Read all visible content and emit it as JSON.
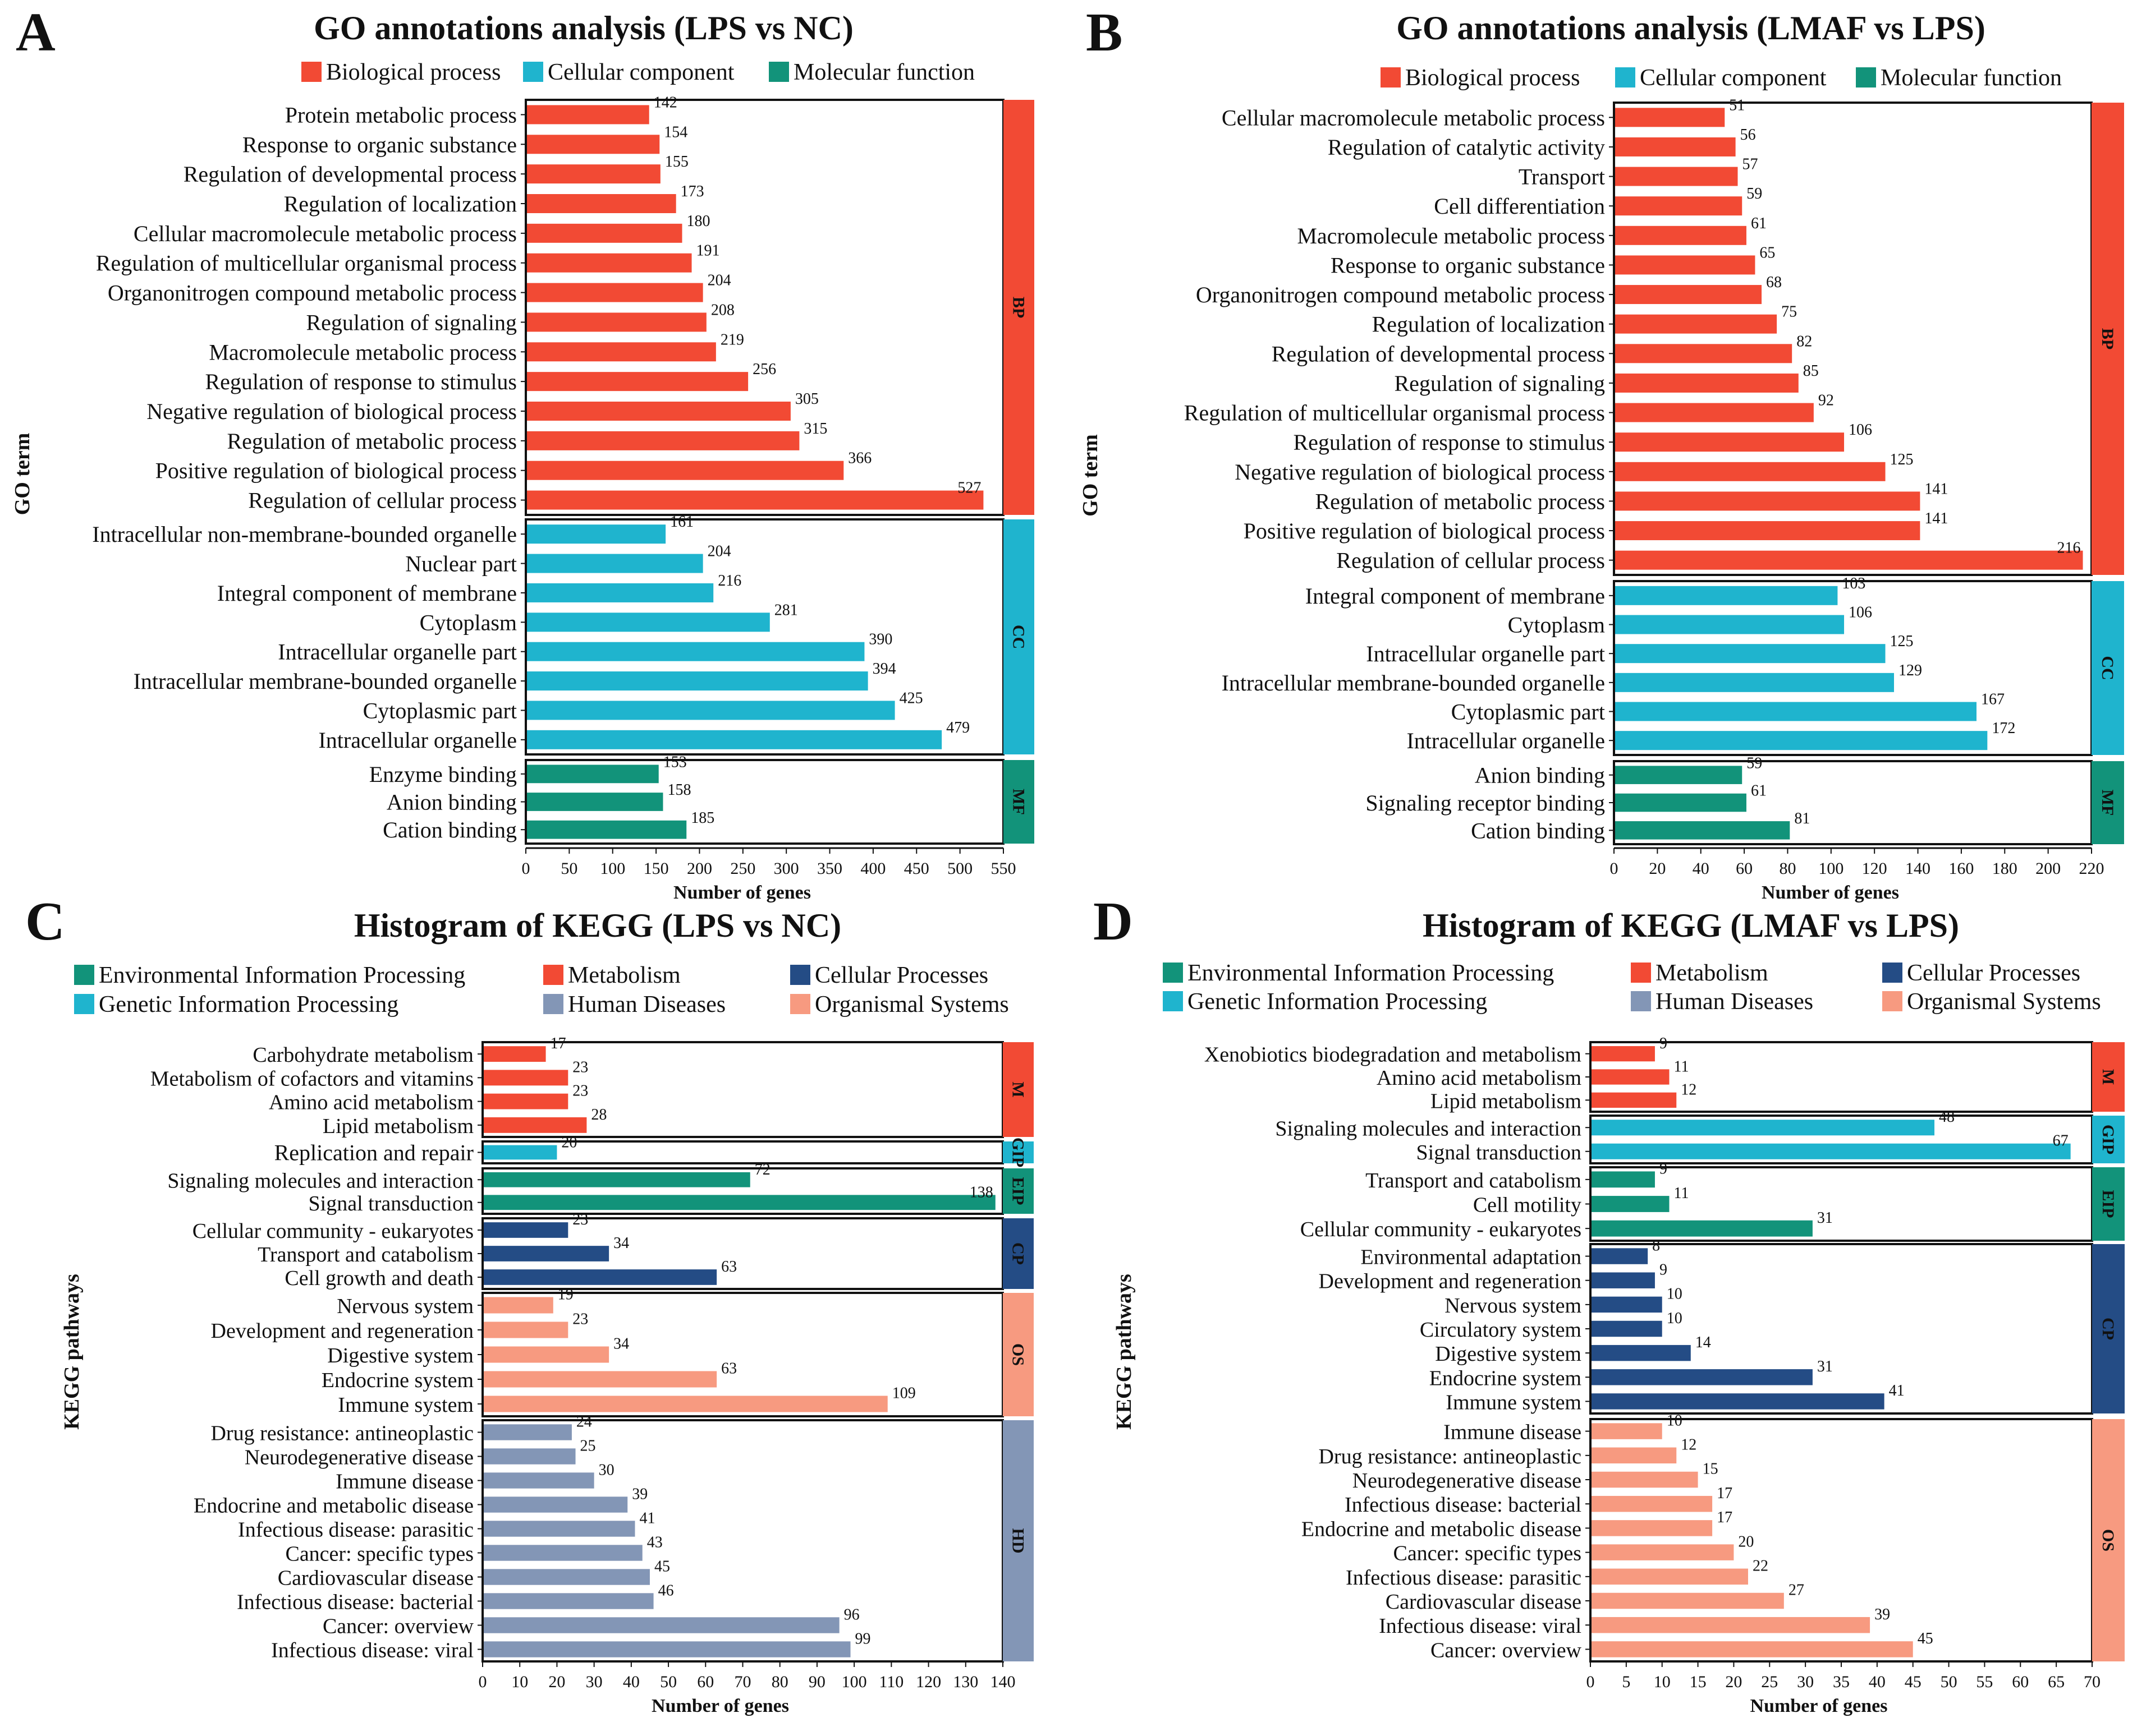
{
  "palette": {
    "BP": "#F24A34",
    "CC": "#1FB4CE",
    "MF": "#12937A",
    "M": "#F24A34",
    "GIP": "#1FB4CE",
    "EIP": "#12937A",
    "CP": "#244C85",
    "HD": "#8396B6",
    "OS": "#F79A80"
  },
  "chart_data": [
    {
      "type": "bar",
      "panel_letter": "A",
      "title": "GO annotations analysis (LPS vs NC)",
      "ylabel": "GO term",
      "xlabel": "Number of genes",
      "xlim": [
        0,
        550
      ],
      "xticks": [
        0,
        50,
        100,
        150,
        200,
        250,
        300,
        350,
        400,
        450,
        500,
        550
      ],
      "legend": [
        {
          "label": "Biological process",
          "key": "BP"
        },
        {
          "label": "Cellular component",
          "key": "CC"
        },
        {
          "label": "Molecular function",
          "key": "MF"
        }
      ],
      "groups": [
        {
          "key": "BP",
          "label": "BP",
          "categories": [
            "Protein metabolic process",
            "Response to organic substance",
            "Regulation of developmental process",
            "Regulation of localization",
            "Cellular macromolecule metabolic process",
            "Regulation of multicellular organismal process",
            "Organonitrogen compound metabolic process",
            "Regulation of signaling",
            "Macromolecule metabolic process",
            "Regulation of response to stimulus",
            "Negative regulation of biological process",
            "Regulation of metabolic process",
            "Positive regulation of biological process",
            "Regulation of cellular process"
          ],
          "values": [
            142,
            154,
            155,
            173,
            180,
            191,
            204,
            208,
            219,
            256,
            305,
            315,
            366,
            527
          ]
        },
        {
          "key": "CC",
          "label": "CC",
          "categories": [
            "Intracellular non-membrane-bounded organelle",
            "Nuclear part",
            "Integral component of membrane",
            "Cytoplasm",
            "Intracellular organelle part",
            "Intracellular membrane-bounded organelle",
            "Cytoplasmic part",
            "Intracellular organelle"
          ],
          "values": [
            161,
            204,
            216,
            281,
            390,
            394,
            425,
            479
          ]
        },
        {
          "key": "MF",
          "label": "MF",
          "categories": [
            "Enzyme binding",
            "Anion binding",
            "Cation binding"
          ],
          "values": [
            153,
            158,
            185
          ]
        }
      ]
    },
    {
      "type": "bar",
      "panel_letter": "B",
      "title": "GO annotations analysis (LMAF vs LPS)",
      "ylabel": "GO term",
      "xlabel": "Number of genes",
      "xlim": [
        0,
        220
      ],
      "xticks": [
        0,
        20,
        40,
        60,
        80,
        100,
        120,
        140,
        160,
        180,
        200,
        220
      ],
      "legend": [
        {
          "label": "Biological process",
          "key": "BP"
        },
        {
          "label": "Cellular component",
          "key": "CC"
        },
        {
          "label": "Molecular function",
          "key": "MF"
        }
      ],
      "groups": [
        {
          "key": "BP",
          "label": "BP",
          "categories": [
            "Cellular macromolecule metabolic process",
            "Regulation of catalytic activity",
            "Transport",
            "Cell differentiation",
            "Macromolecule metabolic process",
            "Response to organic substance",
            "Organonitrogen compound metabolic process",
            "Regulation of localization",
            "Regulation of developmental process",
            "Regulation of signaling",
            "Regulation of multicellular organismal process",
            "Regulation of response to stimulus",
            "Negative regulation of biological process",
            "Regulation of metabolic process",
            "Positive regulation of biological process",
            "Regulation of cellular process"
          ],
          "values": [
            51,
            56,
            57,
            59,
            61,
            65,
            68,
            75,
            82,
            85,
            92,
            106,
            125,
            141,
            141,
            216
          ]
        },
        {
          "key": "CC",
          "label": "CC",
          "categories": [
            "Integral component of membrane",
            "Cytoplasm",
            "Intracellular organelle part",
            "Intracellular membrane-bounded organelle",
            "Cytoplasmic part",
            "Intracellular organelle"
          ],
          "values": [
            103,
            106,
            125,
            129,
            167,
            172
          ]
        },
        {
          "key": "MF",
          "label": "MF",
          "categories": [
            "Anion binding",
            "Signaling receptor binding",
            "Cation binding"
          ],
          "values": [
            59,
            61,
            81
          ]
        }
      ]
    },
    {
      "type": "bar",
      "panel_letter": "C",
      "title": "Histogram of KEGG (LPS vs NC)",
      "ylabel": "KEGG pathways",
      "xlabel": "Number of genes",
      "xlim": [
        0,
        140
      ],
      "xticks": [
        0,
        10,
        20,
        30,
        40,
        50,
        60,
        70,
        80,
        90,
        100,
        110,
        120,
        130,
        140
      ],
      "legend": [
        {
          "label": "Environmental Information Processing",
          "key": "EIP"
        },
        {
          "label": "Metabolism",
          "key": "M"
        },
        {
          "label": "Cellular Processes",
          "key": "CP"
        },
        {
          "label": "Genetic Information Processing",
          "key": "GIP"
        },
        {
          "label": "Human Diseases",
          "key": "HD"
        },
        {
          "label": "Organismal Systems",
          "key": "OS"
        }
      ],
      "groups": [
        {
          "key": "M",
          "label": "M",
          "categories": [
            "Carbohydrate metabolism",
            "Metabolism of cofactors and vitamins",
            "Amino acid metabolism",
            "Lipid metabolism"
          ],
          "values": [
            17,
            23,
            23,
            28
          ]
        },
        {
          "key": "GIP",
          "label": "GIP",
          "categories": [
            "Replication and repair"
          ],
          "values": [
            20
          ]
        },
        {
          "key": "EIP",
          "label": "EIP",
          "categories": [
            "Signaling molecules and interaction",
            "Signal transduction"
          ],
          "values": [
            72,
            138
          ]
        },
        {
          "key": "CP",
          "label": "CP",
          "categories": [
            "Cellular community - eukaryotes",
            "Transport and catabolism",
            "Cell growth and death"
          ],
          "values": [
            23,
            34,
            63
          ]
        },
        {
          "key": "OS",
          "label": "OS",
          "categories": [
            "Nervous system",
            "Development and regeneration",
            "Digestive system",
            "Endocrine system",
            "Immune system"
          ],
          "values": [
            19,
            23,
            34,
            63,
            109
          ]
        },
        {
          "key": "HD",
          "label": "HD",
          "categories": [
            "Drug resistance: antineoplastic",
            "Neurodegenerative disease",
            "Immune disease",
            "Endocrine and metabolic disease",
            "Infectious disease: parasitic",
            "Cancer: specific types",
            "Cardiovascular disease",
            "Infectious disease: bacterial",
            "Cancer: overview",
            "Infectious disease: viral"
          ],
          "values": [
            24,
            25,
            30,
            39,
            41,
            43,
            45,
            46,
            96,
            99
          ]
        }
      ]
    },
    {
      "type": "bar",
      "panel_letter": "D",
      "title": "Histogram of KEGG (LMAF vs LPS)",
      "ylabel": "KEGG pathways",
      "xlabel": "Number of genes",
      "xlim": [
        0,
        70
      ],
      "xticks": [
        0,
        5,
        10,
        15,
        20,
        25,
        30,
        35,
        40,
        45,
        50,
        55,
        60,
        65,
        70
      ],
      "legend": [
        {
          "label": "Environmental Information Processing",
          "key": "EIP"
        },
        {
          "label": "Metabolism",
          "key": "M"
        },
        {
          "label": "Cellular Processes",
          "key": "CP"
        },
        {
          "label": "Genetic Information Processing",
          "key": "GIP"
        },
        {
          "label": "Human Diseases",
          "key": "HD"
        },
        {
          "label": "Organismal Systems",
          "key": "OS"
        }
      ],
      "groups": [
        {
          "key": "M",
          "label": "M",
          "categories": [
            "Xenobiotics biodegradation and metabolism",
            "Amino acid metabolism",
            "Lipid metabolism"
          ],
          "values": [
            9,
            11,
            12
          ]
        },
        {
          "key": "GIP",
          "label": "GIP",
          "categories": [
            "Signaling molecules and interaction",
            "Signal transduction"
          ],
          "values": [
            48,
            67
          ]
        },
        {
          "key": "EIP",
          "label": "EIP",
          "categories": [
            "Transport and catabolism",
            "Cell motility",
            "Cellular community - eukaryotes"
          ],
          "values": [
            9,
            11,
            31
          ]
        },
        {
          "key": "CP",
          "label": "CP",
          "categories": [
            "Environmental adaptation",
            "Development and regeneration",
            "Nervous system",
            "Circulatory system",
            "Digestive system",
            "Endocrine system",
            "Immune system"
          ],
          "values": [
            8,
            9,
            10,
            10,
            14,
            31,
            41
          ]
        },
        {
          "key": "OS",
          "label": "OS",
          "categories": [
            "Immune disease",
            "Drug resistance: antineoplastic",
            "Neurodegenerative disease",
            "Infectious disease: bacterial",
            "Endocrine and metabolic disease",
            "Cancer: specific types",
            "Infectious disease: parasitic",
            "Cardiovascular disease",
            "Infectious disease: viral",
            "Cancer: overview"
          ],
          "values": [
            10,
            12,
            15,
            17,
            17,
            20,
            22,
            27,
            39,
            45
          ]
        }
      ]
    }
  ]
}
